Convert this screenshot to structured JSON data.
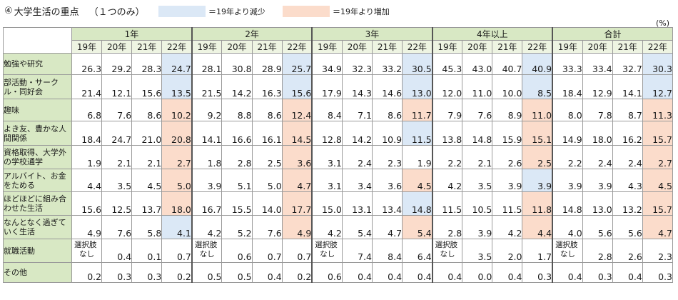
{
  "title": "大学生活の重点",
  "title_num": "④",
  "title_note": "（１つのみ）",
  "legend": [
    {
      "label": "＝19年より減少",
      "color": "#dbe8f6"
    },
    {
      "label": "＝19年より増加",
      "color": "#fbdccb"
    }
  ],
  "unit": "(%)",
  "groups": [
    "1年",
    "2年",
    "3年",
    "4年以上",
    "合計"
  ],
  "years": [
    "19年",
    "20年",
    "21年",
    "22年"
  ],
  "rows": [
    {
      "label": "勉強や研究",
      "values": [
        "26.3",
        "29.2",
        "28.3",
        "24.7",
        "28.1",
        "30.8",
        "28.9",
        "25.7",
        "34.9",
        "32.3",
        "33.2",
        "30.5",
        "45.3",
        "43.0",
        "40.7",
        "40.9",
        "33.3",
        "33.4",
        "32.7",
        "30.3"
      ],
      "marks": [
        "",
        "",
        "",
        "dec",
        "",
        "",
        "",
        "dec",
        "",
        "",
        "",
        "dec",
        "",
        "",
        "",
        "dec",
        "",
        "",
        "",
        "dec"
      ]
    },
    {
      "label": "部活動・サークル・同好会",
      "values": [
        "21.4",
        "12.1",
        "15.6",
        "13.5",
        "21.5",
        "14.2",
        "16.3",
        "15.6",
        "17.9",
        "14.3",
        "14.6",
        "13.0",
        "12.0",
        "11.0",
        "10.0",
        "8.5",
        "18.4",
        "12.9",
        "14.1",
        "12.7"
      ],
      "marks": [
        "",
        "",
        "",
        "dec",
        "",
        "",
        "",
        "dec",
        "",
        "",
        "",
        "dec",
        "",
        "",
        "",
        "dec",
        "",
        "",
        "",
        "dec"
      ]
    },
    {
      "label": "趣味",
      "values": [
        "6.8",
        "7.6",
        "8.6",
        "10.2",
        "9.2",
        "8.8",
        "8.6",
        "12.4",
        "8.4",
        "7.1",
        "8.6",
        "11.7",
        "7.9",
        "7.6",
        "8.9",
        "11.0",
        "8.0",
        "7.8",
        "8.7",
        "11.3"
      ],
      "marks": [
        "",
        "",
        "",
        "inc",
        "",
        "",
        "",
        "inc",
        "",
        "",
        "",
        "inc",
        "",
        "",
        "",
        "inc",
        "",
        "",
        "",
        "inc"
      ]
    },
    {
      "label": "よき友、豊かな人間関係",
      "values": [
        "18.4",
        "24.7",
        "21.0",
        "20.8",
        "14.1",
        "16.6",
        "16.1",
        "14.5",
        "12.8",
        "14.2",
        "10.9",
        "11.5",
        "13.8",
        "14.8",
        "15.9",
        "15.1",
        "14.9",
        "18.0",
        "16.2",
        "15.7"
      ],
      "marks": [
        "",
        "",
        "",
        "inc",
        "",
        "",
        "",
        "inc",
        "",
        "",
        "",
        "dec",
        "",
        "",
        "",
        "inc",
        "",
        "",
        "",
        "inc"
      ]
    },
    {
      "label": "資格取得、大学外の学校通学",
      "values": [
        "1.9",
        "2.1",
        "2.1",
        "2.7",
        "1.8",
        "2.8",
        "2.5",
        "3.6",
        "3.1",
        "2.4",
        "2.3",
        "1.9",
        "2.2",
        "2.1",
        "2.6",
        "2.5",
        "2.2",
        "2.4",
        "2.4",
        "2.7"
      ],
      "marks": [
        "",
        "",
        "",
        "inc",
        "",
        "",
        "",
        "inc",
        "",
        "",
        "",
        "",
        "",
        "",
        "",
        "inc",
        "",
        "",
        "",
        "inc"
      ]
    },
    {
      "label": "アルバイト、お金をためる",
      "values": [
        "4.4",
        "3.5",
        "4.5",
        "5.0",
        "3.9",
        "5.1",
        "5.0",
        "4.7",
        "3.1",
        "3.4",
        "3.6",
        "4.5",
        "4.2",
        "3.5",
        "3.9",
        "3.9",
        "3.9",
        "3.9",
        "4.3",
        "4.5"
      ],
      "marks": [
        "",
        "",
        "",
        "inc",
        "",
        "",
        "",
        "inc",
        "",
        "",
        "",
        "inc",
        "",
        "",
        "",
        "dec",
        "",
        "",
        "",
        "inc"
      ]
    },
    {
      "label": "ほどほどに組み合わせた生活",
      "values": [
        "15.6",
        "12.5",
        "13.7",
        "18.0",
        "16.7",
        "15.5",
        "14.0",
        "17.7",
        "15.0",
        "13.1",
        "13.4",
        "14.8",
        "11.5",
        "10.5",
        "11.5",
        "11.8",
        "14.8",
        "13.0",
        "13.2",
        "15.7"
      ],
      "marks": [
        "",
        "",
        "",
        "inc",
        "",
        "",
        "",
        "inc",
        "",
        "",
        "",
        "dec",
        "",
        "",
        "",
        "inc",
        "",
        "",
        "",
        "inc"
      ]
    },
    {
      "label": "なんとなく過ぎていく生活",
      "values": [
        "4.9",
        "7.6",
        "5.8",
        "4.1",
        "4.2",
        "5.2",
        "7.6",
        "4.9",
        "4.2",
        "5.4",
        "4.7",
        "5.4",
        "2.8",
        "3.9",
        "4.2",
        "4.4",
        "4.0",
        "5.6",
        "5.6",
        "4.7"
      ],
      "marks": [
        "",
        "",
        "",
        "dec",
        "",
        "",
        "",
        "inc",
        "",
        "",
        "",
        "inc",
        "",
        "",
        "",
        "inc",
        "",
        "",
        "",
        "inc"
      ]
    },
    {
      "label": "就職活動",
      "values": [
        "選択肢なし",
        "0.4",
        "0.1",
        "0.7",
        "選択肢なし",
        "0.6",
        "0.7",
        "0.7",
        "選択肢なし",
        "7.4",
        "8.4",
        "6.4",
        "選択肢なし",
        "3.5",
        "2.0",
        "1.7",
        "選択肢なし",
        "2.8",
        "2.6",
        "2.3"
      ],
      "marks": [
        "",
        "",
        "",
        "",
        "",
        "",
        "",
        "",
        "",
        "",
        "",
        "",
        "",
        "",
        "",
        "",
        "",
        "",
        "",
        ""
      ]
    },
    {
      "label": "その他",
      "values": [
        "0.2",
        "0.3",
        "0.3",
        "0.2",
        "0.5",
        "0.5",
        "0.4",
        "0.2",
        "0.6",
        "0.4",
        "0.4",
        "0.4",
        "0.4",
        "0.0",
        "0.4",
        "0.3",
        "0.4",
        "0.3",
        "0.4",
        "0.3"
      ],
      "marks": [
        "",
        "",
        "",
        "",
        "",
        "",
        "",
        "",
        "",
        "",
        "",
        "",
        "",
        "",
        "",
        "",
        "",
        "",
        "",
        ""
      ]
    }
  ]
}
